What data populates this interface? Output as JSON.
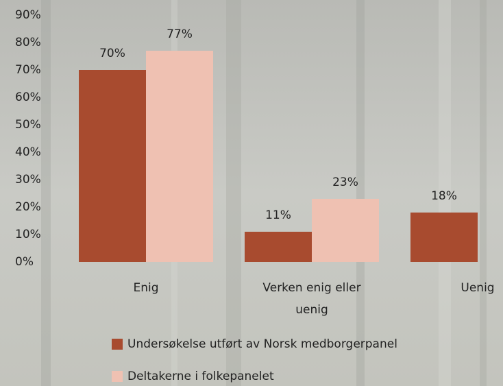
{
  "chart_data": {
    "type": "bar",
    "categories": [
      "Enig",
      "Verken enig eller uenig",
      "Uenig"
    ],
    "series": [
      {
        "name": "Undersøkelse utført av Norsk medborgerpanel",
        "color": "#a84b2f",
        "values": [
          70,
          11,
          18
        ],
        "value_labels": [
          "70%",
          "11%",
          "18%"
        ]
      },
      {
        "name": "Deltakerne i folkepanelet",
        "color": "#efc1b2",
        "values": [
          77,
          23,
          null
        ],
        "value_labels": [
          "77%",
          "23%",
          null
        ]
      }
    ],
    "ylim": [
      0,
      90
    ],
    "yticks": [
      {
        "value": 0,
        "label": "0%"
      },
      {
        "value": 10,
        "label": "10%"
      },
      {
        "value": 20,
        "label": "20%"
      },
      {
        "value": 30,
        "label": "30%"
      },
      {
        "value": 40,
        "label": "40%"
      },
      {
        "value": 50,
        "label": "50%"
      },
      {
        "value": 60,
        "label": "60%"
      },
      {
        "value": 70,
        "label": "70%"
      },
      {
        "value": 80,
        "label": "80%"
      },
      {
        "value": 90,
        "label": "90%"
      }
    ],
    "grid": false
  }
}
